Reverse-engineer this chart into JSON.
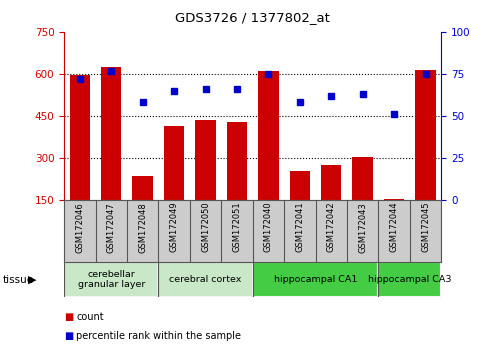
{
  "title": "GDS3726 / 1377802_at",
  "samples": [
    "GSM172046",
    "GSM172047",
    "GSM172048",
    "GSM172049",
    "GSM172050",
    "GSM172051",
    "GSM172040",
    "GSM172041",
    "GSM172042",
    "GSM172043",
    "GSM172044",
    "GSM172045"
  ],
  "counts": [
    595,
    625,
    235,
    415,
    435,
    430,
    610,
    255,
    275,
    305,
    155,
    615
  ],
  "percentiles": [
    72,
    77,
    58,
    65,
    66,
    66,
    75,
    58,
    62,
    63,
    51,
    75
  ],
  "ylim_left": [
    150,
    750
  ],
  "ylim_right": [
    0,
    100
  ],
  "yticks_left": [
    150,
    300,
    450,
    600,
    750
  ],
  "yticks_right": [
    0,
    25,
    50,
    75,
    100
  ],
  "bar_color": "#cc0000",
  "dot_color": "#0000cc",
  "axis_color_left": "#cc0000",
  "axis_color_right": "#0000cc",
  "bg_label": "#cccccc",
  "tissue_groups": [
    {
      "label": "cerebellar\ngranular layer",
      "start": 0,
      "end": 3,
      "color": "#c8e8c8"
    },
    {
      "label": "cerebral cortex",
      "start": 3,
      "end": 6,
      "color": "#c8e8c8"
    },
    {
      "label": "hippocampal CA1",
      "start": 6,
      "end": 10,
      "color": "#44cc44"
    },
    {
      "label": "hippocampal CA3",
      "start": 10,
      "end": 12,
      "color": "#44cc44"
    }
  ],
  "legend_count_label": "count",
  "legend_pct_label": "percentile rank within the sample",
  "tissue_label": "tissue"
}
